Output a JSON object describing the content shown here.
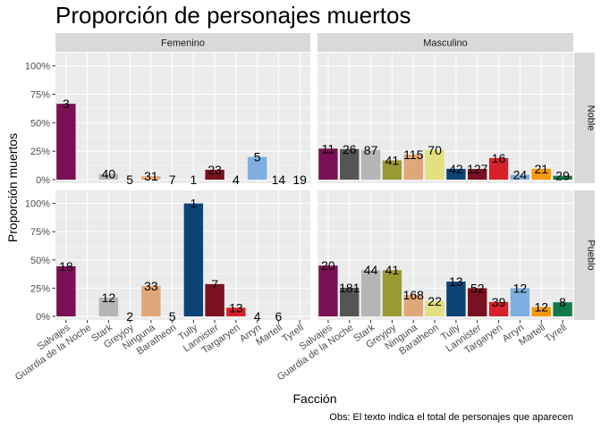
{
  "chart_data": {
    "type": "bar",
    "title": "Proporción de personajes muertos",
    "xlabel": "Facción",
    "ylabel": "Proporción muertos",
    "caption": "Obs: El texto indica el total de personajes que aparecen",
    "ylim": [
      0,
      1.1
    ],
    "yticks": [
      0,
      0.25,
      0.5,
      0.75,
      1.0
    ],
    "ytick_labels": [
      "0%",
      "25%",
      "50%",
      "75%",
      "100%"
    ],
    "grid": true,
    "legend": "none",
    "categories": [
      "Salvajes",
      "Guardia de la Noche",
      "Stark",
      "Greyjoy",
      "Ninguna",
      "Baratheon",
      "Tully",
      "Lannister",
      "Targaryen",
      "Arryn",
      "Martell",
      "Tyrell"
    ],
    "colors": {
      "Salvajes": "#7a1155",
      "Guardia de la Noche": "#555555",
      "Stark": "#b5b5b5",
      "Greyjoy": "#9a9a33",
      "Ninguna": "#e0a87a",
      "Baratheon": "#e2e080",
      "Tully": "#0d4277",
      "Lannister": "#7a1020",
      "Targaryen": "#d6212b",
      "Arryn": "#7faee0",
      "Martell": "#f59a0c",
      "Tyrell": "#117a4a"
    },
    "facet_cols": [
      "Femenino",
      "Masculino"
    ],
    "facet_rows": [
      "Noble",
      "Pueblo"
    ],
    "panels": [
      {
        "col": "Femenino",
        "row": "Noble",
        "values": [
          0.667,
          null,
          0.05,
          0,
          0.03,
          0,
          0,
          0.087,
          0,
          0.2,
          0,
          0
        ],
        "labels": [
          "3",
          "",
          "40",
          "5",
          "31",
          "7",
          "1",
          "23",
          "4",
          "5",
          "14",
          "19"
        ]
      },
      {
        "col": "Masculino",
        "row": "Noble",
        "values": [
          0.273,
          0.269,
          0.26,
          0.17,
          0.22,
          0.26,
          0.095,
          0.094,
          0.19,
          0.042,
          0.095,
          0.034
        ],
        "labels": [
          "11",
          "26",
          "87",
          "41",
          "115",
          "70",
          "42",
          "127",
          "16",
          "24",
          "21",
          "29"
        ]
      },
      {
        "col": "Femenino",
        "row": "Pueblo",
        "values": [
          0.444,
          null,
          0.167,
          0,
          0.27,
          0,
          1.0,
          0.286,
          0.077,
          0,
          0,
          null
        ],
        "labels": [
          "18",
          "",
          "12",
          "2",
          "33",
          "5",
          "1",
          "7",
          "13",
          "4",
          "6",
          ""
        ]
      },
      {
        "col": "Masculino",
        "row": "Pueblo",
        "values": [
          0.45,
          0.254,
          0.41,
          0.41,
          0.19,
          0.136,
          0.308,
          0.25,
          0.128,
          0.25,
          0.083,
          0.125
        ],
        "labels": [
          "20",
          "181",
          "44",
          "41",
          "168",
          "22",
          "13",
          "52",
          "39",
          "12",
          "12",
          "8"
        ]
      }
    ]
  }
}
